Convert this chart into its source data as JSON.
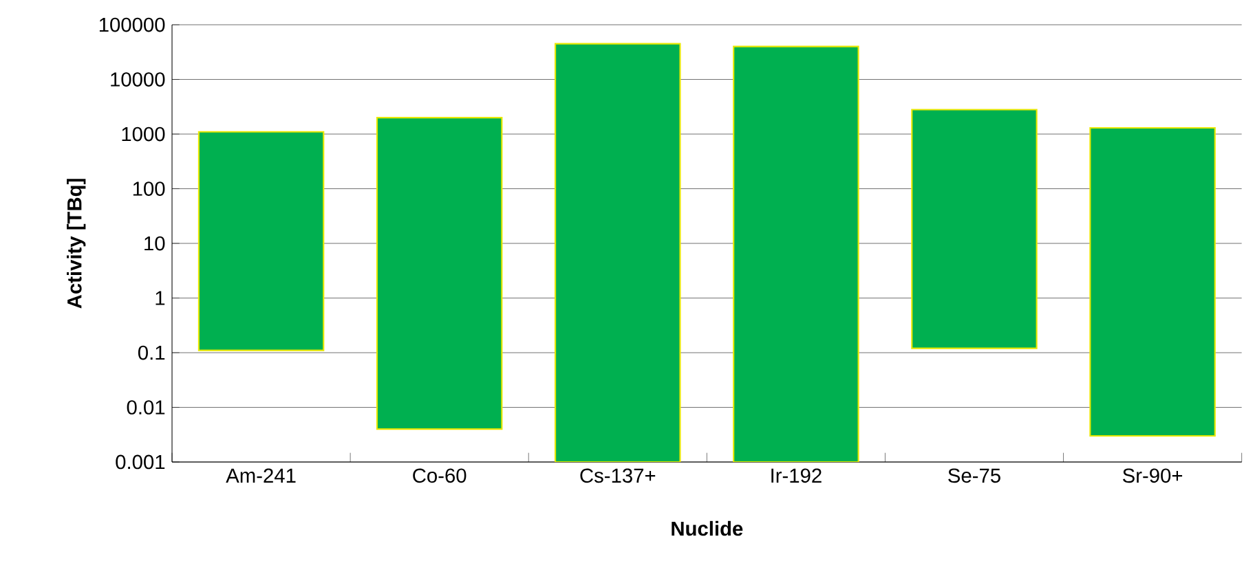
{
  "chart_data": {
    "type": "bar",
    "categories": [
      "Am-241",
      "Co-60",
      "Cs-137+",
      "Ir-192",
      "Se-75",
      "Sr-90+"
    ],
    "values": [
      1100,
      2000,
      45000,
      40000,
      2800,
      1300
    ],
    "base": [
      0.11,
      0.004,
      0.001,
      0.001,
      0.12,
      0.003
    ],
    "color": "#00b050",
    "xlabel": "Nuclide",
    "ylabel": "Activity [TBq]",
    "log": "y",
    "ylim": [
      0.001,
      100000
    ],
    "yticks": [
      0.001,
      0.01,
      0.1,
      1,
      10,
      100,
      1000,
      10000,
      100000
    ],
    "grid": "y"
  }
}
